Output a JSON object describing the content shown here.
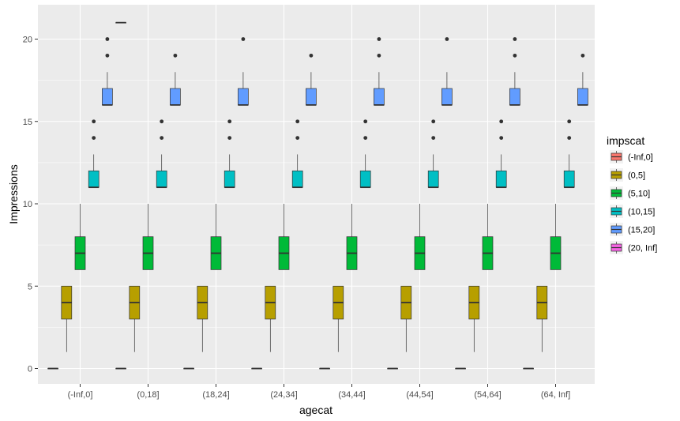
{
  "chart_data": {
    "type": "boxplot",
    "title": "",
    "xlabel": "agecat",
    "ylabel": "Impressions",
    "ylim": [
      -1,
      22
    ],
    "y_ticks": [
      0,
      5,
      10,
      15,
      20
    ],
    "grid": true,
    "legend_position": "right",
    "legend_title": "impscat",
    "categories": [
      "(-Inf,0]",
      "(0,18]",
      "(18,24]",
      "(24,34]",
      "(34,44]",
      "(44,54]",
      "(54,64]",
      "(64, Inf]"
    ],
    "series": [
      {
        "name": "(-Inf,0]",
        "color": "#F8766D"
      },
      {
        "name": "(0,5]",
        "color": "#B79F00"
      },
      {
        "name": "(5,10]",
        "color": "#00BA38"
      },
      {
        "name": "(10,15]",
        "color": "#00BFC4"
      },
      {
        "name": "(15,20]",
        "color": "#619CFF"
      },
      {
        "name": "(20, Inf]",
        "color": "#F564E3"
      }
    ],
    "boxes": [
      {
        "category": "(-Inf,0]",
        "series": "(-Inf,0]",
        "lower": 0,
        "q1": 0,
        "median": 0,
        "q3": 0,
        "upper": 0,
        "outliers": []
      },
      {
        "category": "(-Inf,0]",
        "series": "(0,5]",
        "lower": 1,
        "q1": 3,
        "median": 4,
        "q3": 5,
        "upper": 5,
        "outliers": []
      },
      {
        "category": "(-Inf,0]",
        "series": "(5,10]",
        "lower": 6,
        "q1": 6,
        "median": 7,
        "q3": 8,
        "upper": 10,
        "outliers": []
      },
      {
        "category": "(-Inf,0]",
        "series": "(10,15]",
        "lower": 11,
        "q1": 11,
        "median": 11,
        "q3": 12,
        "upper": 13,
        "outliers": [
          14,
          15
        ]
      },
      {
        "category": "(-Inf,0]",
        "series": "(15,20]",
        "lower": 16,
        "q1": 16,
        "median": 16,
        "q3": 17,
        "upper": 18,
        "outliers": [
          19,
          20
        ]
      },
      {
        "category": "(-Inf,0]",
        "series": "(20, Inf]",
        "lower": 21,
        "q1": 21,
        "median": 21,
        "q3": 21,
        "upper": 21,
        "outliers": []
      },
      {
        "category": "(0,18]",
        "series": "(-Inf,0]",
        "lower": 0,
        "q1": 0,
        "median": 0,
        "q3": 0,
        "upper": 0,
        "outliers": []
      },
      {
        "category": "(0,18]",
        "series": "(0,5]",
        "lower": 1,
        "q1": 3,
        "median": 4,
        "q3": 5,
        "upper": 5,
        "outliers": []
      },
      {
        "category": "(0,18]",
        "series": "(5,10]",
        "lower": 6,
        "q1": 6,
        "median": 7,
        "q3": 8,
        "upper": 10,
        "outliers": []
      },
      {
        "category": "(0,18]",
        "series": "(10,15]",
        "lower": 11,
        "q1": 11,
        "median": 11,
        "q3": 12,
        "upper": 13,
        "outliers": [
          14,
          15
        ]
      },
      {
        "category": "(0,18]",
        "series": "(15,20]",
        "lower": 16,
        "q1": 16,
        "median": 16,
        "q3": 17,
        "upper": 18,
        "outliers": [
          19
        ]
      },
      {
        "category": "(18,24]",
        "series": "(-Inf,0]",
        "lower": 0,
        "q1": 0,
        "median": 0,
        "q3": 0,
        "upper": 0,
        "outliers": []
      },
      {
        "category": "(18,24]",
        "series": "(0,5]",
        "lower": 1,
        "q1": 3,
        "median": 4,
        "q3": 5,
        "upper": 5,
        "outliers": []
      },
      {
        "category": "(18,24]",
        "series": "(5,10]",
        "lower": 6,
        "q1": 6,
        "median": 7,
        "q3": 8,
        "upper": 10,
        "outliers": []
      },
      {
        "category": "(18,24]",
        "series": "(10,15]",
        "lower": 11,
        "q1": 11,
        "median": 11,
        "q3": 12,
        "upper": 13,
        "outliers": [
          14,
          15
        ]
      },
      {
        "category": "(18,24]",
        "series": "(15,20]",
        "lower": 16,
        "q1": 16,
        "median": 16,
        "q3": 17,
        "upper": 18,
        "outliers": [
          20
        ]
      },
      {
        "category": "(24,34]",
        "series": "(-Inf,0]",
        "lower": 0,
        "q1": 0,
        "median": 0,
        "q3": 0,
        "upper": 0,
        "outliers": []
      },
      {
        "category": "(24,34]",
        "series": "(0,5]",
        "lower": 1,
        "q1": 3,
        "median": 4,
        "q3": 5,
        "upper": 5,
        "outliers": []
      },
      {
        "category": "(24,34]",
        "series": "(5,10]",
        "lower": 6,
        "q1": 6,
        "median": 7,
        "q3": 8,
        "upper": 10,
        "outliers": []
      },
      {
        "category": "(24,34]",
        "series": "(10,15]",
        "lower": 11,
        "q1": 11,
        "median": 11,
        "q3": 12,
        "upper": 13,
        "outliers": [
          14,
          15
        ]
      },
      {
        "category": "(24,34]",
        "series": "(15,20]",
        "lower": 16,
        "q1": 16,
        "median": 16,
        "q3": 17,
        "upper": 18,
        "outliers": [
          19
        ]
      },
      {
        "category": "(34,44]",
        "series": "(-Inf,0]",
        "lower": 0,
        "q1": 0,
        "median": 0,
        "q3": 0,
        "upper": 0,
        "outliers": []
      },
      {
        "category": "(34,44]",
        "series": "(0,5]",
        "lower": 1,
        "q1": 3,
        "median": 4,
        "q3": 5,
        "upper": 5,
        "outliers": []
      },
      {
        "category": "(34,44]",
        "series": "(5,10]",
        "lower": 6,
        "q1": 6,
        "median": 7,
        "q3": 8,
        "upper": 10,
        "outliers": []
      },
      {
        "category": "(34,44]",
        "series": "(10,15]",
        "lower": 11,
        "q1": 11,
        "median": 11,
        "q3": 12,
        "upper": 13,
        "outliers": [
          14,
          15
        ]
      },
      {
        "category": "(34,44]",
        "series": "(15,20]",
        "lower": 16,
        "q1": 16,
        "median": 16,
        "q3": 17,
        "upper": 18,
        "outliers": [
          19,
          20
        ]
      },
      {
        "category": "(44,54]",
        "series": "(-Inf,0]",
        "lower": 0,
        "q1": 0,
        "median": 0,
        "q3": 0,
        "upper": 0,
        "outliers": []
      },
      {
        "category": "(44,54]",
        "series": "(0,5]",
        "lower": 1,
        "q1": 3,
        "median": 4,
        "q3": 5,
        "upper": 5,
        "outliers": []
      },
      {
        "category": "(44,54]",
        "series": "(5,10]",
        "lower": 6,
        "q1": 6,
        "median": 7,
        "q3": 8,
        "upper": 10,
        "outliers": []
      },
      {
        "category": "(44,54]",
        "series": "(10,15]",
        "lower": 11,
        "q1": 11,
        "median": 11,
        "q3": 12,
        "upper": 13,
        "outliers": [
          14,
          15
        ]
      },
      {
        "category": "(44,54]",
        "series": "(15,20]",
        "lower": 16,
        "q1": 16,
        "median": 16,
        "q3": 17,
        "upper": 18,
        "outliers": [
          20
        ]
      },
      {
        "category": "(54,64]",
        "series": "(-Inf,0]",
        "lower": 0,
        "q1": 0,
        "median": 0,
        "q3": 0,
        "upper": 0,
        "outliers": []
      },
      {
        "category": "(54,64]",
        "series": "(0,5]",
        "lower": 1,
        "q1": 3,
        "median": 4,
        "q3": 5,
        "upper": 5,
        "outliers": []
      },
      {
        "category": "(54,64]",
        "series": "(5,10]",
        "lower": 6,
        "q1": 6,
        "median": 7,
        "q3": 8,
        "upper": 10,
        "outliers": []
      },
      {
        "category": "(54,64]",
        "series": "(10,15]",
        "lower": 11,
        "q1": 11,
        "median": 11,
        "q3": 12,
        "upper": 13,
        "outliers": [
          14,
          15
        ]
      },
      {
        "category": "(54,64]",
        "series": "(15,20]",
        "lower": 16,
        "q1": 16,
        "median": 16,
        "q3": 17,
        "upper": 18,
        "outliers": [
          19,
          20
        ]
      },
      {
        "category": "(64, Inf]",
        "series": "(-Inf,0]",
        "lower": 0,
        "q1": 0,
        "median": 0,
        "q3": 0,
        "upper": 0,
        "outliers": []
      },
      {
        "category": "(64, Inf]",
        "series": "(0,5]",
        "lower": 1,
        "q1": 3,
        "median": 4,
        "q3": 5,
        "upper": 5,
        "outliers": []
      },
      {
        "category": "(64, Inf]",
        "series": "(5,10]",
        "lower": 6,
        "q1": 6,
        "median": 7,
        "q3": 8,
        "upper": 10,
        "outliers": []
      },
      {
        "category": "(64, Inf]",
        "series": "(10,15]",
        "lower": 11,
        "q1": 11,
        "median": 11,
        "q3": 12,
        "upper": 13,
        "outliers": [
          14,
          15
        ]
      },
      {
        "category": "(64, Inf]",
        "series": "(15,20]",
        "lower": 16,
        "q1": 16,
        "median": 16,
        "q3": 17,
        "upper": 18,
        "outliers": [
          19
        ]
      }
    ]
  }
}
